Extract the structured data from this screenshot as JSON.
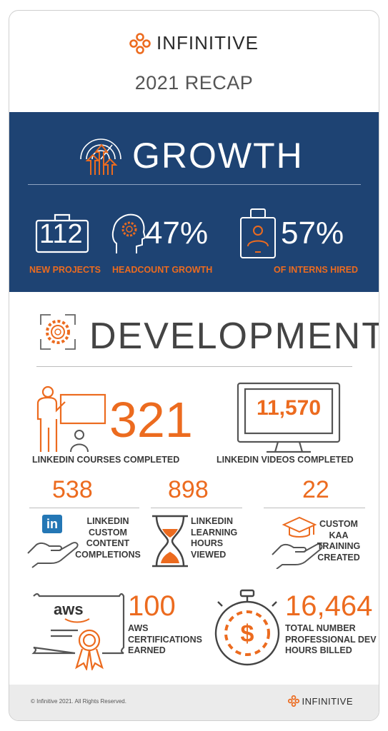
{
  "header": {
    "brand": "INFINITIVE",
    "title": "2021 RECAP"
  },
  "growth": {
    "title": "GROWTH",
    "stats": [
      {
        "value": "112",
        "label": "NEW PROJECTS"
      },
      {
        "value": "47%",
        "label": "HEADCOUNT GROWTH"
      },
      {
        "value": "57%",
        "label": "OF INTERNS HIRED"
      }
    ]
  },
  "development": {
    "title": "DEVELOPMENT",
    "courses": {
      "value": "321",
      "label": "LINKEDIN COURSES COMPLETED"
    },
    "videos": {
      "value": "11,570",
      "label": "LINKEDIN VIDEOS COMPLETED"
    },
    "custom": {
      "value": "538",
      "label": "LINKEDIN CUSTOM CONTENT COMPLETIONS",
      "badge": "in"
    },
    "hours": {
      "value": "898",
      "label": "LINKEDIN LEARNING HOURS VIEWED"
    },
    "kaa": {
      "value": "22",
      "label": "CUSTOM KAA TRAINING CREATED"
    },
    "aws": {
      "value": "100",
      "label": "AWS CERTIFICATIONS EARNED",
      "logo": "aws"
    },
    "dev_hours": {
      "value": "16,464",
      "label": "TOTAL NUMBER PROFESSIONAL DEV HOURS BILLED"
    }
  },
  "footer": {
    "copyright": "© Infinitive 2021. All Rights Reserved.",
    "brand": "INFINITIVE"
  },
  "colors": {
    "accent": "#ec6b1f",
    "navy": "#1e4373"
  }
}
